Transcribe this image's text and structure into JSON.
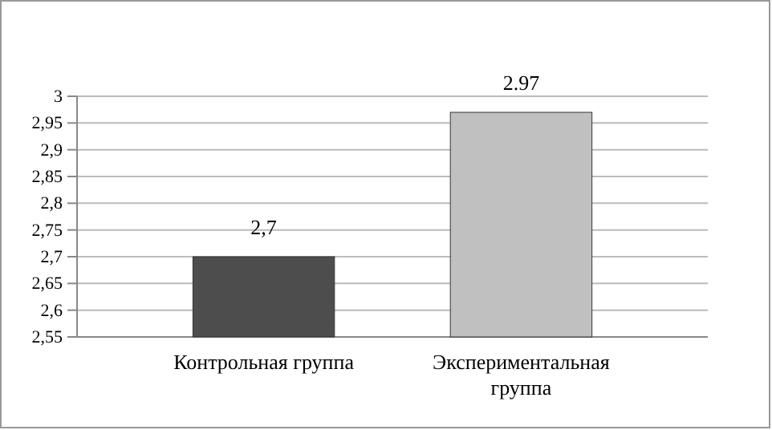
{
  "chart_data": {
    "type": "bar",
    "categories": [
      "Контрольная группа",
      "Экспериментальная группа"
    ],
    "values": [
      2.7,
      2.97
    ],
    "colors": [
      "#4d4d4d",
      "#c0c0c0"
    ],
    "value_labels": [
      "2,7",
      "2.97"
    ],
    "ylim": [
      2.55,
      3
    ],
    "yticks": [
      {
        "value": 2.55,
        "label": "2,55"
      },
      {
        "value": 2.6,
        "label": "2,6"
      },
      {
        "value": 2.65,
        "label": "2,65"
      },
      {
        "value": 2.7,
        "label": "2,7"
      },
      {
        "value": 2.75,
        "label": "2,75"
      },
      {
        "value": 2.8,
        "label": "2,8"
      },
      {
        "value": 2.85,
        "label": "2,85"
      },
      {
        "value": 2.9,
        "label": "2,9"
      },
      {
        "value": 2.95,
        "label": "2,95"
      },
      {
        "value": 3,
        "label": "3"
      }
    ],
    "grid": "y"
  }
}
